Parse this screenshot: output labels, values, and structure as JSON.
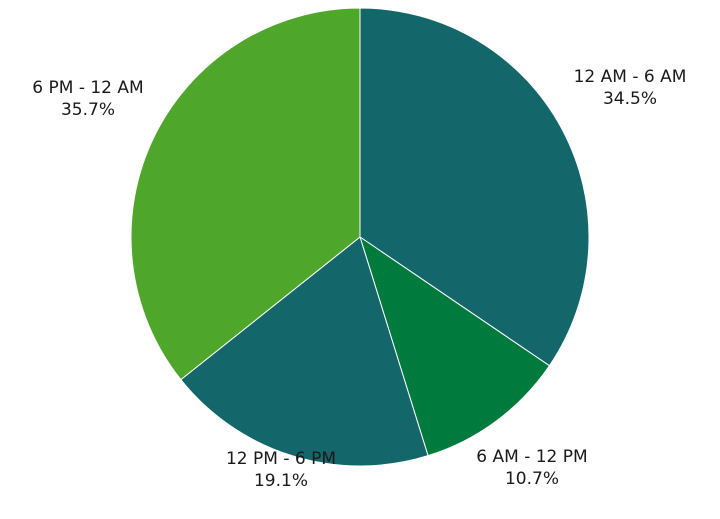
{
  "chart_data": {
    "type": "pie",
    "title": "",
    "start_angle_deg": 0,
    "direction": "clockwise",
    "legend": "none",
    "slices": [
      {
        "label": "12 AM - 6 AM",
        "value": 34.5,
        "value_label": "34.5%",
        "color": "#13666a"
      },
      {
        "label": "6 AM - 12 PM",
        "value": 10.7,
        "value_label": "10.7%",
        "color": "#007a3d"
      },
      {
        "label": "12 PM - 6 PM",
        "value": 19.1,
        "value_label": "19.1%",
        "color": "#13666a"
      },
      {
        "label": "6 PM - 12 AM",
        "value": 35.7,
        "value_label": "35.7%",
        "color": "#4ea72b"
      }
    ]
  }
}
